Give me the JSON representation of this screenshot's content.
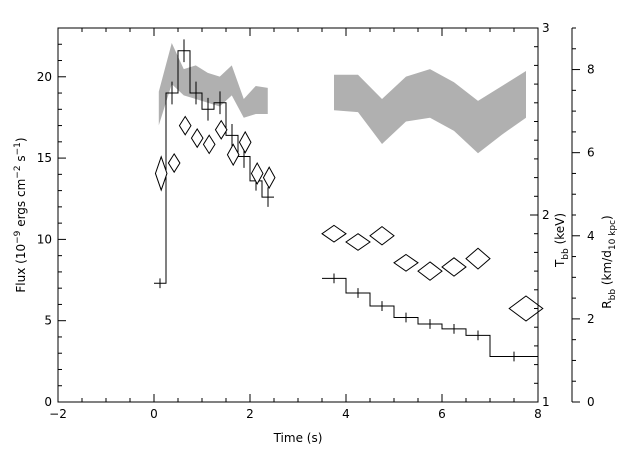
{
  "chart_data": {
    "type": "line",
    "title": "",
    "xlabel": "Time (s)",
    "ylabel_left": {
      "main": "Flux (10",
      "sup1": "−9",
      "mid1": " ergs cm",
      "sup2": "−2",
      "mid2": " s",
      "sup3": "−1",
      "end": ")"
    },
    "ylabel_tbb": {
      "main": "T",
      "sub": "bb",
      "end": " (keV)"
    },
    "ylabel_rbb": {
      "main": "R",
      "sub1": "bb",
      "mid": " (km/d",
      "sub2": "10 kpc",
      "end": ")"
    },
    "xlim": [
      -2,
      8
    ],
    "ylim_flux": [
      0,
      23
    ],
    "ylim_tbb": [
      1,
      3
    ],
    "ylim_rbb": [
      0,
      9
    ],
    "x_ticks": [
      -2,
      0,
      2,
      4,
      6,
      8
    ],
    "flux_ticks": [
      0,
      5,
      10,
      15,
      20
    ],
    "tbb_ticks": [
      1,
      2,
      3
    ],
    "rbb_ticks": [
      0,
      2,
      4,
      6,
      8
    ],
    "series": [
      {
        "kind": "flux_steps",
        "bins": [
          {
            "x0": 0.0,
            "x1": 0.25,
            "y": 7.3,
            "err": 0.3
          },
          {
            "x0": 0.25,
            "x1": 0.5,
            "y": 19.0,
            "err": 0.7
          },
          {
            "x0": 0.5,
            "x1": 0.75,
            "y": 21.6,
            "err": 0.7
          },
          {
            "x0": 0.75,
            "x1": 1.0,
            "y": 19.0,
            "err": 0.7
          },
          {
            "x0": 1.0,
            "x1": 1.25,
            "y": 18.0,
            "err": 0.7
          },
          {
            "x0": 1.25,
            "x1": 1.5,
            "y": 18.4,
            "err": 0.7
          },
          {
            "x0": 1.5,
            "x1": 1.75,
            "y": 16.4,
            "err": 0.7
          },
          {
            "x0": 1.75,
            "x1": 2.0,
            "y": 15.1,
            "err": 0.7
          },
          {
            "x0": 2.0,
            "x1": 2.25,
            "y": 13.6,
            "err": 0.6
          },
          {
            "x0": 2.25,
            "x1": 2.5,
            "y": 12.6,
            "err": 0.6
          },
          {
            "x0": 3.5,
            "x1": 4.0,
            "y": 7.6,
            "err": 0.3
          },
          {
            "x0": 4.0,
            "x1": 4.5,
            "y": 6.7,
            "err": 0.3
          },
          {
            "x0": 4.5,
            "x1": 5.0,
            "y": 5.9,
            "err": 0.3
          },
          {
            "x0": 5.0,
            "x1": 5.5,
            "y": 5.2,
            "err": 0.3
          },
          {
            "x0": 5.5,
            "x1": 6.0,
            "y": 4.8,
            "err": 0.3
          },
          {
            "x0": 6.0,
            "x1": 6.5,
            "y": 4.5,
            "err": 0.3
          },
          {
            "x0": 6.5,
            "x1": 7.0,
            "y": 4.1,
            "err": 0.3
          },
          {
            "x0": 7.0,
            "x1": 8.0,
            "y": 2.8,
            "err": 0.3
          }
        ]
      },
      {
        "kind": "temperature_band",
        "segments": [
          {
            "x": [
              0.1,
              0.37,
              0.62,
              0.87,
              1.12,
              1.37,
              1.62,
              1.87,
              2.12,
              2.37
            ],
            "upper": [
              2.66,
              2.92,
              2.78,
              2.8,
              2.76,
              2.74,
              2.8,
              2.62,
              2.69,
              2.68
            ],
            "lower": [
              2.48,
              2.7,
              2.64,
              2.62,
              2.6,
              2.58,
              2.64,
              2.52,
              2.54,
              2.54
            ]
          },
          {
            "x": [
              3.75,
              4.25,
              4.75,
              5.25,
              5.75,
              6.25,
              6.75,
              7.25,
              7.75
            ],
            "upper": [
              2.75,
              2.75,
              2.62,
              2.74,
              2.78,
              2.71,
              2.61,
              2.69,
              2.77
            ],
            "lower": [
              2.56,
              2.55,
              2.38,
              2.5,
              2.52,
              2.45,
              2.33,
              2.43,
              2.52
            ]
          }
        ]
      },
      {
        "kind": "radius_diamonds",
        "points": [
          {
            "x": 0.15,
            "y": 5.5,
            "dx": 0.12,
            "dy": 0.4
          },
          {
            "x": 0.42,
            "y": 5.75,
            "dx": 0.12,
            "dy": 0.22
          },
          {
            "x": 0.65,
            "y": 6.65,
            "dx": 0.12,
            "dy": 0.22
          },
          {
            "x": 0.9,
            "y": 6.35,
            "dx": 0.12,
            "dy": 0.22
          },
          {
            "x": 1.15,
            "y": 6.2,
            "dx": 0.12,
            "dy": 0.22
          },
          {
            "x": 1.4,
            "y": 6.55,
            "dx": 0.12,
            "dy": 0.22
          },
          {
            "x": 1.65,
            "y": 5.95,
            "dx": 0.12,
            "dy": 0.25
          },
          {
            "x": 1.9,
            "y": 6.25,
            "dx": 0.12,
            "dy": 0.25
          },
          {
            "x": 2.15,
            "y": 5.5,
            "dx": 0.12,
            "dy": 0.25
          },
          {
            "x": 2.4,
            "y": 5.4,
            "dx": 0.12,
            "dy": 0.25
          },
          {
            "x": 3.75,
            "y": 4.05,
            "dx": 0.25,
            "dy": 0.2
          },
          {
            "x": 4.25,
            "y": 3.85,
            "dx": 0.25,
            "dy": 0.2
          },
          {
            "x": 4.75,
            "y": 4.0,
            "dx": 0.25,
            "dy": 0.22
          },
          {
            "x": 5.25,
            "y": 3.35,
            "dx": 0.25,
            "dy": 0.2
          },
          {
            "x": 5.75,
            "y": 3.15,
            "dx": 0.25,
            "dy": 0.22
          },
          {
            "x": 6.25,
            "y": 3.25,
            "dx": 0.25,
            "dy": 0.22
          },
          {
            "x": 6.75,
            "y": 3.45,
            "dx": 0.25,
            "dy": 0.25
          },
          {
            "x": 7.75,
            "y": 2.25,
            "dx": 0.35,
            "dy": 0.3
          }
        ]
      }
    ],
    "colors": {
      "band": "#b0b0b0",
      "axes": "#000000",
      "background": "#ffffff"
    }
  }
}
